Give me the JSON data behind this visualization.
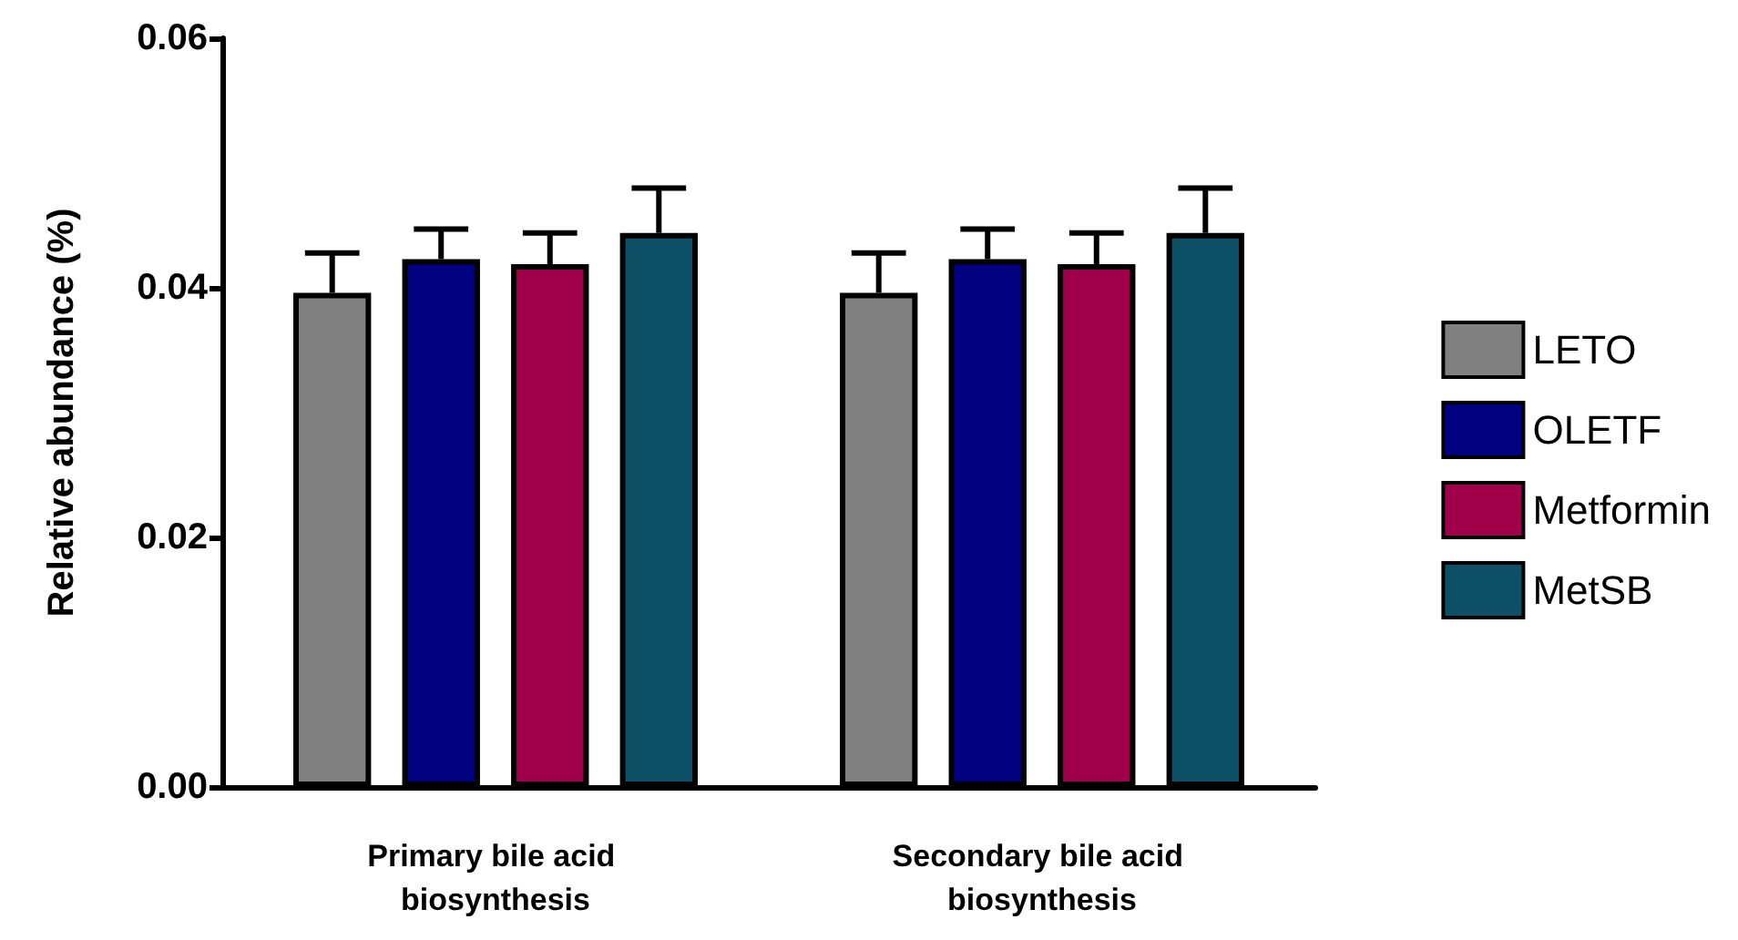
{
  "chart_data": {
    "type": "bar",
    "ylabel": "Relative abundance (%)",
    "categories": [
      "Primary bile acid biosynthesis",
      "Secondary bile acid biosynthesis"
    ],
    "series": [
      {
        "name": "LETO",
        "color": "#808080",
        "values": [
          0.0396,
          0.0396
        ],
        "errors": [
          [
            0.0396,
            0.0428
          ],
          [
            0.0396,
            0.0428
          ]
        ]
      },
      {
        "name": "OLETF",
        "color": "#000080",
        "values": [
          0.0423,
          0.0423
        ],
        "errors": [
          [
            0.0423,
            0.0447
          ],
          [
            0.0423,
            0.0447
          ]
        ]
      },
      {
        "name": "Metformin",
        "color": "#a0004a",
        "values": [
          0.0419,
          0.0419
        ],
        "errors": [
          [
            0.0419,
            0.0444
          ],
          [
            0.0419,
            0.0444
          ]
        ]
      },
      {
        "name": "MetSB",
        "color": "#0d5066",
        "values": [
          0.0444,
          0.0444
        ],
        "errors": [
          [
            0.0444,
            0.048
          ],
          [
            0.0444,
            0.048
          ]
        ]
      }
    ],
    "ylim": [
      0,
      0.06
    ],
    "yticks": [
      {
        "value": 0,
        "label": "0.00"
      },
      {
        "value": 0.02,
        "label": "0.02"
      },
      {
        "value": 0.04,
        "label": "0.04"
      },
      {
        "value": 0.06,
        "label": "0.06"
      }
    ],
    "legend": "right",
    "grid": false
  }
}
